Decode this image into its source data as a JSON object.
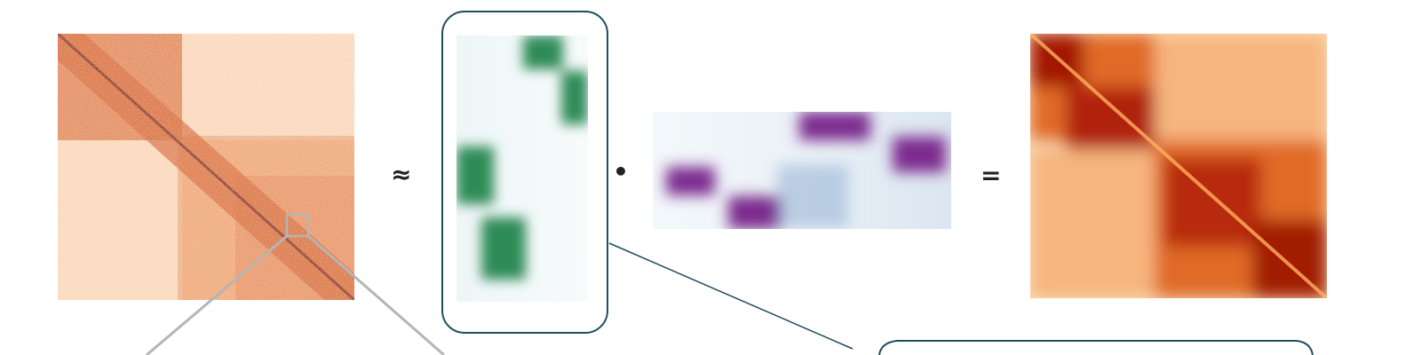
{
  "diagram": {
    "operators": {
      "approx": "≈",
      "dot": "•",
      "equals": "="
    },
    "colors": {
      "hic_base": "#f6c38f",
      "hic_dark": "#c23d0d",
      "w_factor": "#2e8b57",
      "h_factor": "#7b2a8e",
      "frame": "#1f4e5c",
      "zoom_lines": "#b5b5b5"
    },
    "panels": [
      "hic-contact-map",
      "factor-matrix-w",
      "factor-matrix-h",
      "reconstructed-contact-map"
    ]
  }
}
